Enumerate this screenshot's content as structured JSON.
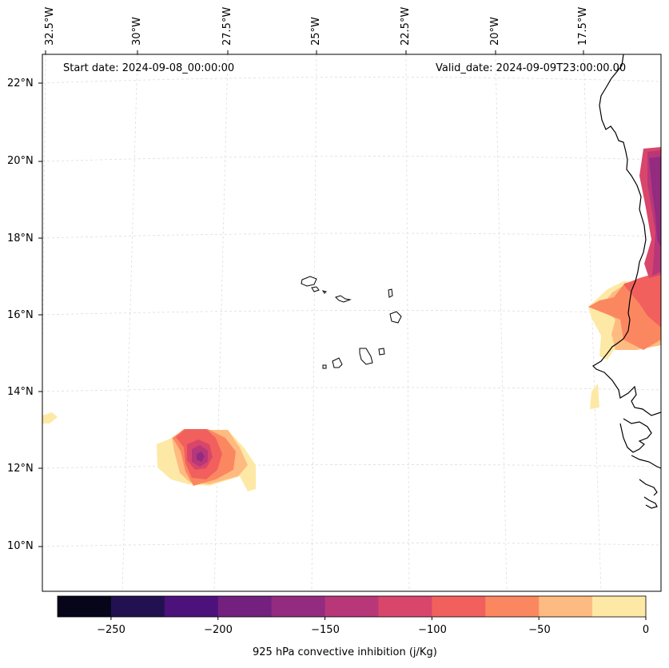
{
  "header": {
    "start_date": "Start date: 2024-09-08_00:00:00",
    "valid_date": "Valid_date: 2024-09-09T23:00:00.00"
  },
  "axes": {
    "lon_labels": [
      "32.5°W",
      "30°W",
      "27.5°W",
      "25°W",
      "22.5°W",
      "20°W",
      "17.5°W"
    ],
    "lat_labels": [
      "22°N",
      "20°N",
      "18°N",
      "16°N",
      "14°N",
      "12°N",
      "10°N"
    ]
  },
  "colorbar": {
    "label": "925 hPa convective inhibition (j/Kg)",
    "tick_labels": [
      "−250",
      "−200",
      "−150",
      "−100",
      "−50",
      "0"
    ],
    "levels": [
      -275,
      -250,
      -225,
      -200,
      -175,
      -150,
      -125,
      -100,
      -75,
      -50,
      -25,
      0
    ],
    "colors": [
      "#06051a",
      "#221150",
      "#4d117b",
      "#73207f",
      "#932b80",
      "#b73779",
      "#d9466b",
      "#f1605d",
      "#fb8761",
      "#febb81",
      "#fde9a5"
    ]
  }
}
